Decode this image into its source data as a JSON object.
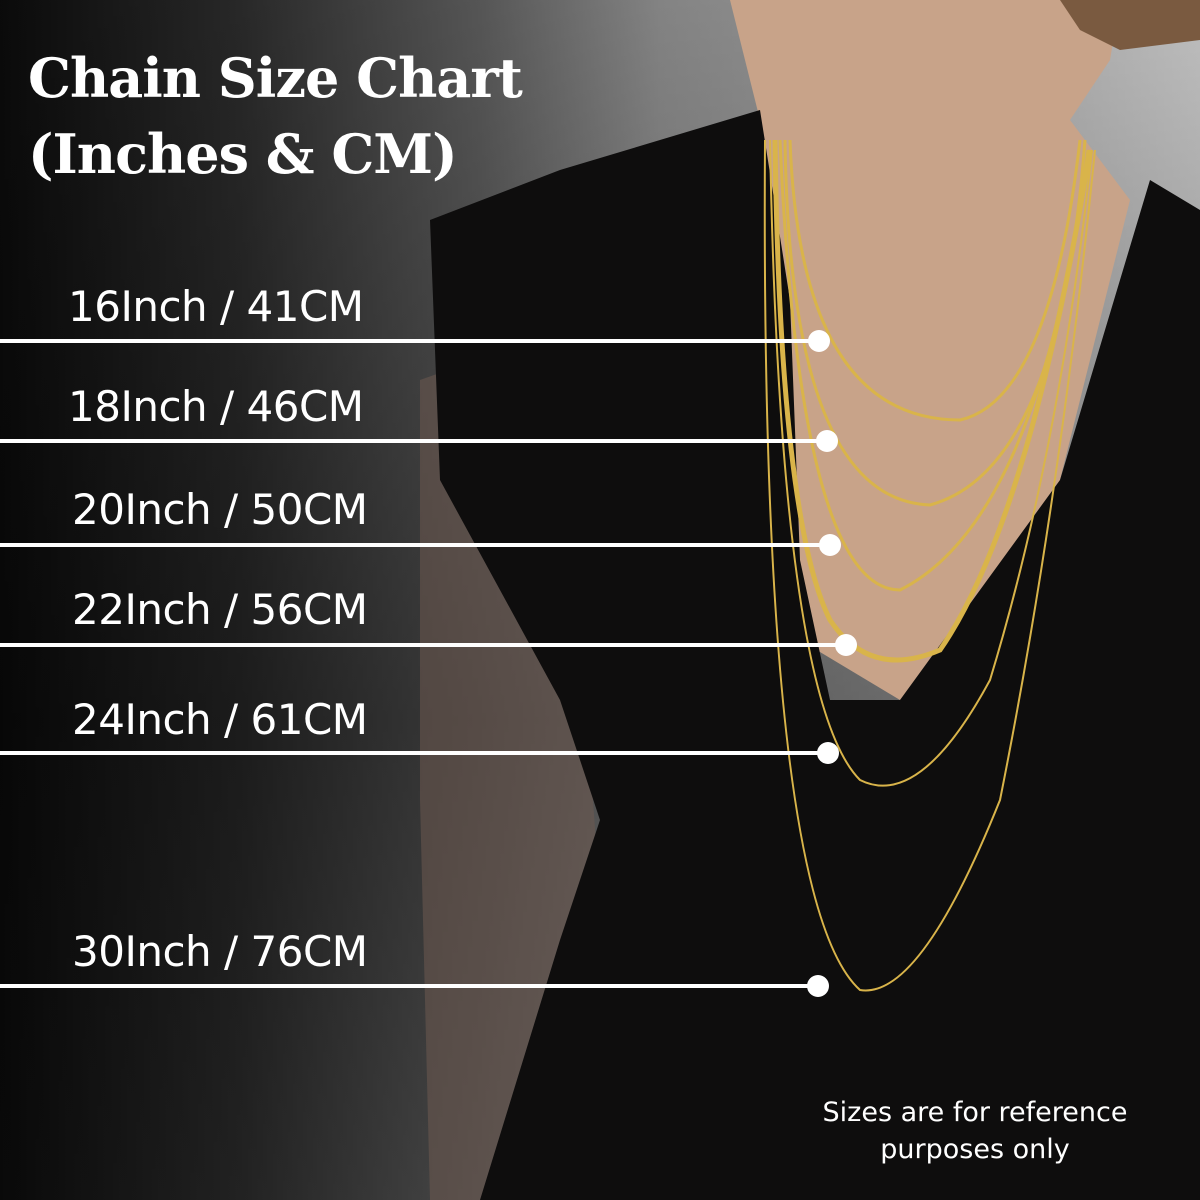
{
  "title": {
    "line1": "Chain Size Chart",
    "line2": "(Inches & CM)"
  },
  "sizes": [
    {
      "label": "16Inch / 41CM",
      "inches": 16,
      "cm": 41
    },
    {
      "label": "18Inch / 46CM",
      "inches": 18,
      "cm": 46
    },
    {
      "label": "20Inch / 50CM",
      "inches": 20,
      "cm": 50
    },
    {
      "label": "22Inch / 56CM",
      "inches": 22,
      "cm": 56
    },
    {
      "label": "24Inch / 61CM",
      "inches": 24,
      "cm": 61
    },
    {
      "label": "30Inch / 76CM",
      "inches": 30,
      "cm": 76
    }
  ],
  "note": {
    "line1": "Sizes are for reference",
    "line2": "purposes only"
  },
  "colors": {
    "text": "#ffffff",
    "chain": "#d9b44a",
    "dress": "#0d0c0c",
    "skin": "#c9a48a"
  }
}
